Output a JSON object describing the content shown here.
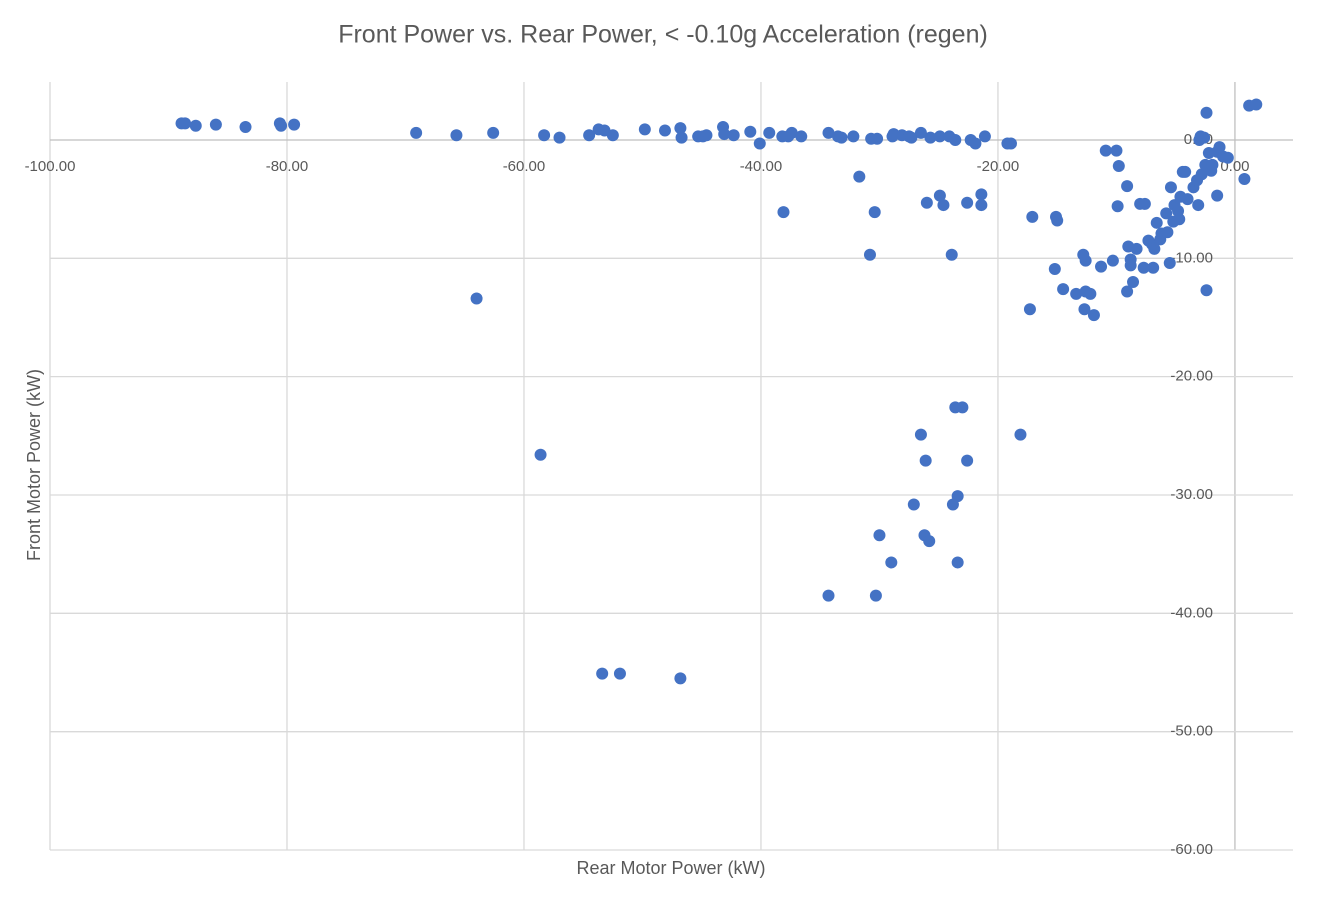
{
  "chart_data": {
    "type": "scatter",
    "title": "Front Power vs. Rear Power, < -0.10g Acceleration (regen)",
    "x_label": "Rear Motor Power (kW)",
    "y_label": "Front Motor Power (kW)",
    "color": "#4472c4",
    "grid": true,
    "xlim": [
      -100,
      4.9
    ],
    "ylim": [
      -60,
      4.9
    ],
    "xticks": [
      {
        "value": -100,
        "label": "-100.00"
      },
      {
        "value": -80,
        "label": "-80.00"
      },
      {
        "value": -60,
        "label": "-60.00"
      },
      {
        "value": -40,
        "label": "-40.00"
      },
      {
        "value": -20,
        "label": "-20.00"
      },
      {
        "value": 0,
        "label": "0.00"
      }
    ],
    "yticks": [
      {
        "value": 0,
        "label": "0.00"
      },
      {
        "value": -10,
        "label": "-10.00"
      },
      {
        "value": -20,
        "label": "-20.00"
      },
      {
        "value": -30,
        "label": "-30.00"
      },
      {
        "value": -40,
        "label": "-40.00"
      },
      {
        "value": -50,
        "label": "-50.00"
      },
      {
        "value": -60,
        "label": "-60.00"
      }
    ],
    "x": [
      -88.9,
      -88.6,
      -87.7,
      -86.0,
      -83.5,
      -80.6,
      -80.5,
      -79.4,
      -69.1,
      -65.7,
      -62.6,
      -58.3,
      -57.0,
      -54.5,
      -53.7,
      -53.2,
      -52.5,
      -49.8,
      -48.1,
      -46.8,
      -46.7,
      -45.3,
      -44.9,
      -44.6,
      -43.2,
      -43.1,
      -42.3,
      -40.9,
      -40.1,
      -39.3,
      -38.2,
      -37.7,
      -37.4,
      -36.6,
      -34.3,
      -33.5,
      -33.2,
      -32.2,
      -30.7,
      -30.2,
      -28.9,
      -28.8,
      -28.1,
      -27.5,
      -27.3,
      -26.5,
      -25.7,
      -24.9,
      -24.1,
      -23.6,
      -22.3,
      -21.9,
      -21.1,
      -19.2,
      -18.9,
      -64.0,
      -58.6,
      -38.1,
      -31.7,
      -30.4,
      -30.8,
      -26.0,
      -24.9,
      -24.6,
      -23.9,
      -22.6,
      -21.4,
      -21.4,
      -26.5,
      -26.1,
      -23.6,
      -23.0,
      -22.6,
      -18.1,
      -27.1,
      -23.4,
      -23.8,
      -26.2,
      -25.8,
      -30.0,
      -29.0,
      -23.4,
      -34.3,
      -30.3,
      -53.4,
      -51.9,
      -46.8,
      -17.3,
      -17.1,
      -15.1,
      -15.0,
      -15.2,
      -14.5,
      -13.4,
      -12.8,
      -12.6,
      -12.6,
      -12.2,
      -12.7,
      -11.9,
      -11.3,
      -10.9,
      -10.0,
      -10.3,
      -9.8,
      -9.9,
      -9.1,
      -9.0,
      -9.1,
      -8.8,
      -8.8,
      -8.6,
      -8.3,
      -8.0,
      -7.6,
      -7.7,
      -7.3,
      -7.0,
      -6.9,
      -6.8,
      -6.6,
      -6.3,
      -6.2,
      -5.8,
      -5.7,
      -5.5,
      -5.4,
      -5.2,
      -5.1,
      -4.8,
      -4.7,
      -4.6,
      -4.4,
      -4.2,
      -4.0,
      -3.5,
      -3.2,
      -3.1,
      -3.0,
      -2.9,
      -2.6,
      -2.8,
      -2.5,
      -2.4,
      -2.4,
      -2.2,
      -2.0,
      -1.9,
      -1.5,
      -1.5,
      -1.3,
      -1.0,
      -0.6,
      0.8,
      1.2,
      1.8
    ],
    "values": [
      1.4,
      1.4,
      1.2,
      1.3,
      1.1,
      1.4,
      1.2,
      1.3,
      0.6,
      0.4,
      0.6,
      0.4,
      0.2,
      0.4,
      0.9,
      0.8,
      0.4,
      0.9,
      0.8,
      1.0,
      0.2,
      0.3,
      0.3,
      0.4,
      1.1,
      0.5,
      0.4,
      0.7,
      -0.3,
      0.6,
      0.3,
      0.3,
      0.6,
      0.3,
      0.6,
      0.3,
      0.2,
      0.3,
      0.1,
      0.1,
      0.3,
      0.5,
      0.4,
      0.3,
      0.2,
      0.6,
      0.2,
      0.3,
      0.3,
      0,
      0,
      -0.3,
      0.3,
      -0.3,
      -0.3,
      -13.4,
      -26.6,
      -6.1,
      -3.1,
      -6.1,
      -9.7,
      -5.3,
      -4.7,
      -5.5,
      -9.7,
      -5.3,
      -4.6,
      -5.5,
      -24.9,
      -27.1,
      -22.6,
      -22.6,
      -27.1,
      -24.9,
      -30.8,
      -30.1,
      -30.8,
      -33.4,
      -33.9,
      -33.4,
      -35.7,
      -35.7,
      -38.5,
      -38.5,
      -45.1,
      -45.1,
      -45.5,
      -14.3,
      -6.5,
      -6.5,
      -6.8,
      -10.9,
      -12.6,
      -13.0,
      -9.7,
      -10.2,
      -12.8,
      -13.0,
      -14.3,
      -14.8,
      -10.7,
      -0.9,
      -0.9,
      -10.2,
      -2.2,
      -5.6,
      -3.9,
      -9.0,
      -12.8,
      -10.1,
      -10.6,
      -12.0,
      -9.2,
      -5.4,
      -5.4,
      -10.8,
      -8.5,
      -8.8,
      -10.8,
      -9.2,
      -7.0,
      -8.4,
      -7.9,
      -6.2,
      -7.8,
      -10.4,
      -4.0,
      -6.9,
      -5.5,
      -6.0,
      -6.7,
      -4.8,
      -2.7,
      -2.7,
      -5.0,
      -4.0,
      -3.4,
      -5.5,
      0,
      0.3,
      0.2,
      -2.9,
      -2.1,
      2.3,
      -12.7,
      -1.1,
      -2.6,
      -2.1,
      -4.7,
      -1.0,
      -0.6,
      -1.4,
      -1.5,
      -3.3,
      2.9,
      3.0
    ]
  }
}
